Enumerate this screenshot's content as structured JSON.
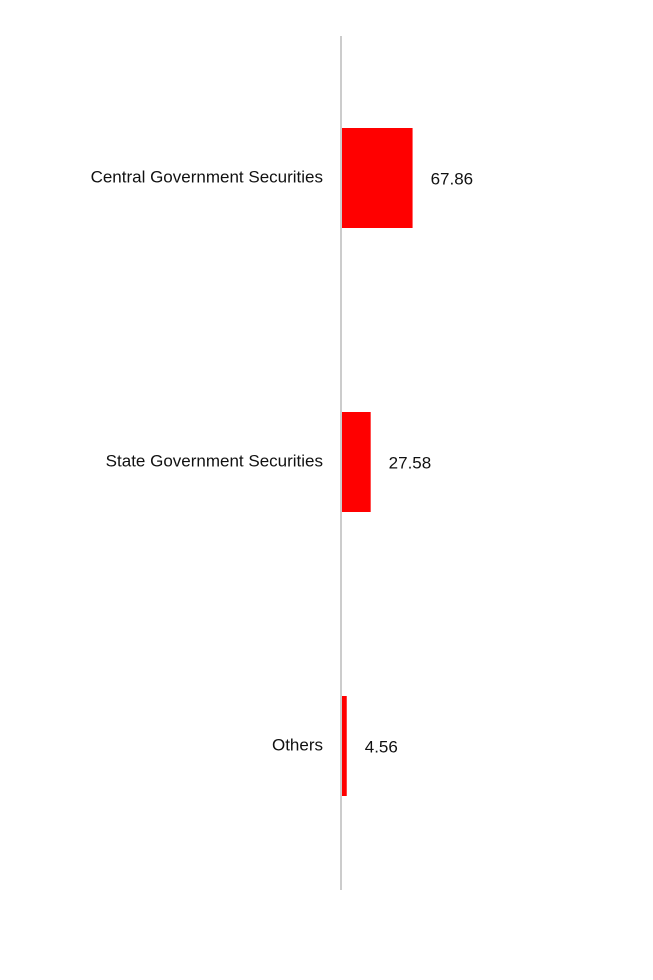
{
  "colors": {
    "bar": "#ff0000",
    "axis": "#cccccc",
    "text": "#111111",
    "background": "#ffffff"
  },
  "chart_data": {
    "type": "bar",
    "orientation": "horizontal",
    "categories": [
      "Central Government Securities",
      "State Government Securities",
      "Others"
    ],
    "values": [
      67.86,
      27.58,
      4.56
    ],
    "data_labels": [
      "67.86",
      "27.58",
      "4.56"
    ],
    "title": "",
    "xlabel": "",
    "ylabel": "",
    "xlim": [
      0,
      300
    ],
    "grid": false,
    "legend": "none"
  }
}
